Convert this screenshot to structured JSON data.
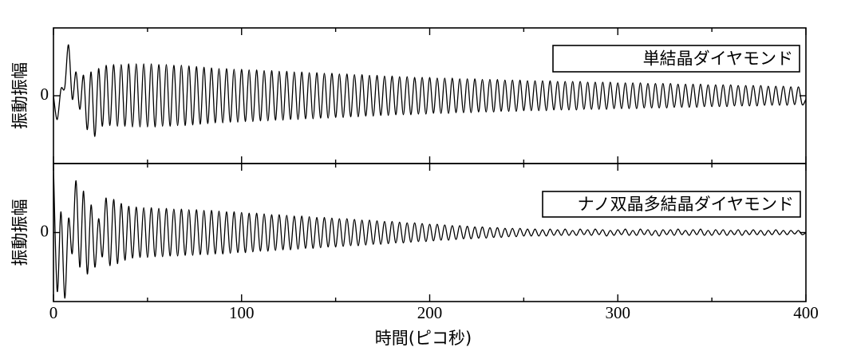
{
  "chart_data": [
    {
      "type": "line",
      "ylabel": "振動振幅",
      "ylim": [
        -1,
        1
      ],
      "yticks": [
        0
      ],
      "xlim": [
        0,
        400
      ],
      "xticks": [
        0,
        100,
        200,
        300,
        400
      ],
      "xminor": [
        50,
        150,
        250,
        350
      ],
      "show_xtick_labels": false,
      "legend": "upper right",
      "x": [
        0,
        2,
        4,
        6,
        8,
        10,
        12,
        14,
        16,
        18,
        20,
        22,
        24,
        26,
        28,
        30,
        32,
        34,
        36,
        38,
        40,
        42,
        44,
        46,
        48,
        50,
        52,
        54,
        56,
        58,
        60,
        62,
        64,
        66,
        68,
        70,
        72,
        74,
        76,
        78,
        80,
        82,
        84,
        86,
        88,
        90,
        92,
        94,
        96,
        98,
        100,
        102,
        104,
        106,
        108,
        110,
        112,
        114,
        116,
        118,
        120,
        122,
        124,
        126,
        128,
        130,
        132,
        134,
        136,
        138,
        140,
        142,
        144,
        146,
        148,
        150,
        152,
        154,
        156,
        158,
        160,
        162,
        164,
        166,
        168,
        170,
        172,
        174,
        176,
        178,
        180,
        182,
        184,
        186,
        188,
        190,
        192,
        194,
        196,
        198,
        200,
        202,
        204,
        206,
        208,
        210,
        212,
        214,
        216,
        218,
        220,
        222,
        224,
        226,
        228,
        230,
        232,
        234,
        236,
        238,
        240,
        242,
        244,
        246,
        248,
        250,
        252,
        254,
        256,
        258,
        260,
        262,
        264,
        266,
        268,
        270,
        272,
        274,
        276,
        278,
        280,
        282,
        284,
        286,
        288,
        290,
        292,
        294,
        296,
        298,
        300,
        302,
        304,
        306,
        308,
        310,
        312,
        314,
        316,
        318,
        320,
        322,
        324,
        326,
        328,
        330,
        332,
        334,
        336,
        338,
        340,
        342,
        344,
        346,
        348,
        350,
        352,
        354,
        356,
        358,
        360,
        362,
        364,
        366,
        368,
        370,
        372,
        374,
        376,
        378,
        380,
        382,
        384,
        386,
        388,
        390,
        392,
        394,
        396,
        398,
        400
      ],
      "series": [
        {
          "name": "単結晶ダイヤモンド",
          "color": "#000000",
          "values": [
            0,
            -0.35,
            0.1,
            0.12,
            0.75,
            -0.05,
            0.35,
            -0.2,
            0.3,
            -0.5,
            0.35,
            -0.6,
            0.4,
            -0.45,
            0.45,
            -0.44,
            0.46,
            -0.45,
            0.46,
            -0.45,
            0.47,
            -0.46,
            0.47,
            -0.46,
            0.47,
            -0.46,
            0.47,
            -0.46,
            0.46,
            -0.45,
            0.46,
            -0.45,
            0.45,
            -0.44,
            0.45,
            -0.44,
            0.44,
            -0.43,
            0.43,
            -0.42,
            0.42,
            -0.41,
            0.41,
            -0.4,
            0.4,
            -0.4,
            0.4,
            -0.39,
            0.39,
            -0.39,
            0.39,
            -0.38,
            0.38,
            -0.38,
            0.38,
            -0.37,
            0.37,
            -0.37,
            0.37,
            -0.36,
            0.36,
            -0.36,
            0.36,
            -0.35,
            0.35,
            -0.35,
            0.35,
            -0.34,
            0.34,
            -0.34,
            0.34,
            -0.33,
            0.33,
            -0.33,
            0.33,
            -0.32,
            0.32,
            -0.32,
            0.32,
            -0.31,
            0.31,
            -0.31,
            0.31,
            -0.3,
            0.3,
            -0.3,
            0.3,
            -0.29,
            0.29,
            -0.29,
            0.29,
            -0.28,
            0.28,
            -0.28,
            0.28,
            -0.28,
            0.27,
            -0.27,
            0.27,
            -0.27,
            0.27,
            -0.26,
            0.26,
            -0.26,
            0.26,
            -0.26,
            0.26,
            -0.25,
            0.25,
            -0.25,
            0.25,
            -0.25,
            0.25,
            -0.24,
            0.24,
            -0.24,
            0.24,
            -0.24,
            0.24,
            -0.23,
            0.23,
            -0.23,
            0.23,
            -0.23,
            0.23,
            -0.22,
            0.22,
            -0.22,
            0.22,
            -0.22,
            0.22,
            -0.22,
            0.22,
            -0.21,
            0.21,
            -0.21,
            0.21,
            -0.21,
            0.21,
            -0.21,
            0.21,
            -0.2,
            0.2,
            -0.2,
            0.2,
            -0.2,
            0.2,
            -0.2,
            0.2,
            -0.19,
            0.19,
            -0.19,
            0.19,
            -0.19,
            0.19,
            -0.19,
            0.19,
            -0.18,
            0.18,
            -0.18,
            0.18,
            -0.18,
            0.18,
            -0.18,
            0.18,
            -0.17,
            0.17,
            -0.17,
            0.17,
            -0.17,
            0.17,
            -0.17,
            0.17,
            -0.16,
            0.16,
            -0.16,
            0.16,
            -0.16,
            0.16,
            -0.16,
            0.16,
            -0.15,
            0.15,
            -0.15,
            0.15,
            -0.15,
            0.15,
            -0.15,
            0.15,
            -0.14,
            0.14,
            -0.14,
            0.14,
            -0.14,
            0.14,
            -0.14,
            0.13,
            -0.13,
            0.13,
            -0.13,
            -0.05
          ]
        }
      ]
    },
    {
      "type": "line",
      "ylabel": "振動振幅",
      "xlabel": "時間(ピコ秒)",
      "ylim": [
        -1,
        1
      ],
      "yticks": [
        0
      ],
      "xlim": [
        0,
        400
      ],
      "xticks": [
        0,
        100,
        200,
        300,
        400
      ],
      "xminor": [
        50,
        150,
        250,
        350
      ],
      "show_xtick_labels": true,
      "legend": "upper right",
      "x": [
        0,
        2,
        4,
        6,
        8,
        10,
        12,
        14,
        16,
        18,
        20,
        22,
        24,
        26,
        28,
        30,
        32,
        34,
        36,
        38,
        40,
        42,
        44,
        46,
        48,
        50,
        52,
        54,
        56,
        58,
        60,
        62,
        64,
        66,
        68,
        70,
        72,
        74,
        76,
        78,
        80,
        82,
        84,
        86,
        88,
        90,
        92,
        94,
        96,
        98,
        100,
        102,
        104,
        106,
        108,
        110,
        112,
        114,
        116,
        118,
        120,
        122,
        124,
        126,
        128,
        130,
        132,
        134,
        136,
        138,
        140,
        142,
        144,
        146,
        148,
        150,
        152,
        154,
        156,
        158,
        160,
        162,
        164,
        166,
        168,
        170,
        172,
        174,
        176,
        178,
        180,
        182,
        184,
        186,
        188,
        190,
        192,
        194,
        196,
        198,
        200,
        202,
        204,
        206,
        208,
        210,
        212,
        214,
        216,
        218,
        220,
        222,
        224,
        226,
        228,
        230,
        232,
        234,
        236,
        238,
        240,
        242,
        244,
        246,
        248,
        250,
        252,
        254,
        256,
        258,
        260,
        262,
        264,
        266,
        268,
        270,
        272,
        274,
        276,
        278,
        280,
        282,
        284,
        286,
        288,
        290,
        292,
        294,
        296,
        298,
        300,
        302,
        304,
        306,
        308,
        310,
        312,
        314,
        316,
        318,
        320,
        322,
        324,
        326,
        328,
        330,
        332,
        334,
        336,
        338,
        340,
        342,
        344,
        346,
        348,
        350,
        352,
        354,
        356,
        358,
        360,
        362,
        364,
        366,
        368,
        370,
        372,
        374,
        376,
        378,
        380,
        382,
        384,
        386,
        388,
        390,
        392,
        394,
        396,
        398,
        400
      ],
      "series": [
        {
          "name": "ナノ双晶多結晶ダイヤモンド",
          "color": "#000000",
          "values": [
            0.95,
            -0.85,
            0.3,
            -0.95,
            0.2,
            -0.3,
            0.75,
            -0.5,
            0.6,
            -0.6,
            0.4,
            -0.5,
            0.2,
            -0.35,
            0.5,
            -0.48,
            0.48,
            -0.45,
            0.42,
            -0.4,
            0.38,
            -0.37,
            0.37,
            -0.36,
            0.36,
            -0.36,
            0.36,
            -0.35,
            0.35,
            -0.35,
            0.35,
            -0.34,
            0.34,
            -0.34,
            0.34,
            -0.33,
            0.33,
            -0.33,
            0.33,
            -0.32,
            0.32,
            -0.32,
            0.32,
            -0.31,
            0.31,
            -0.31,
            0.3,
            -0.3,
            0.3,
            -0.29,
            0.29,
            -0.29,
            0.28,
            -0.28,
            0.28,
            -0.27,
            0.27,
            -0.27,
            0.26,
            -0.26,
            0.26,
            -0.25,
            0.25,
            -0.25,
            0.24,
            -0.24,
            0.24,
            -0.23,
            0.23,
            -0.23,
            0.22,
            -0.22,
            0.22,
            -0.21,
            0.21,
            -0.21,
            0.2,
            -0.2,
            0.2,
            -0.19,
            0.19,
            -0.19,
            0.18,
            -0.18,
            0.18,
            -0.17,
            0.17,
            -0.17,
            0.16,
            -0.16,
            0.16,
            -0.15,
            0.15,
            -0.15,
            0.14,
            -0.14,
            0.14,
            -0.13,
            0.13,
            -0.13,
            0.12,
            -0.12,
            0.12,
            -0.11,
            0.11,
            -0.11,
            0.1,
            -0.1,
            0.1,
            -0.09,
            0.09,
            -0.09,
            0.08,
            -0.08,
            0.08,
            -0.08,
            0.07,
            -0.07,
            0.07,
            -0.07,
            0.06,
            -0.06,
            0.06,
            -0.06,
            0.06,
            -0.05,
            0.05,
            -0.05,
            0.05,
            -0.05,
            0.04,
            -0.05,
            0.05,
            -0.04,
            0.04,
            -0.04,
            0.05,
            -0.04,
            0.03,
            -0.04,
            0.05,
            -0.03,
            0.04,
            -0.04,
            0.05,
            -0.03,
            0.04,
            -0.05,
            0.03,
            -0.04,
            0.04,
            -0.03,
            0.05,
            -0.04,
            0.03,
            -0.04,
            0.05,
            -0.03,
            0.04,
            -0.04,
            0.03,
            -0.05,
            0.04,
            -0.03,
            0.04,
            -0.04,
            0.05,
            -0.03,
            0.03,
            -0.04,
            0.04,
            -0.03,
            0.05,
            -0.04,
            0.03,
            -0.04,
            0.04,
            -0.03,
            0.04,
            -0.04,
            0.03,
            -0.03,
            0.04,
            -0.04,
            0.03,
            -0.03,
            0.04,
            -0.03,
            0.03,
            -0.04,
            0.03,
            -0.03,
            0.04,
            -0.03,
            0.03,
            -0.03,
            0.03,
            -0.02,
            0.03,
            -0.03,
            0
          ]
        }
      ]
    }
  ]
}
